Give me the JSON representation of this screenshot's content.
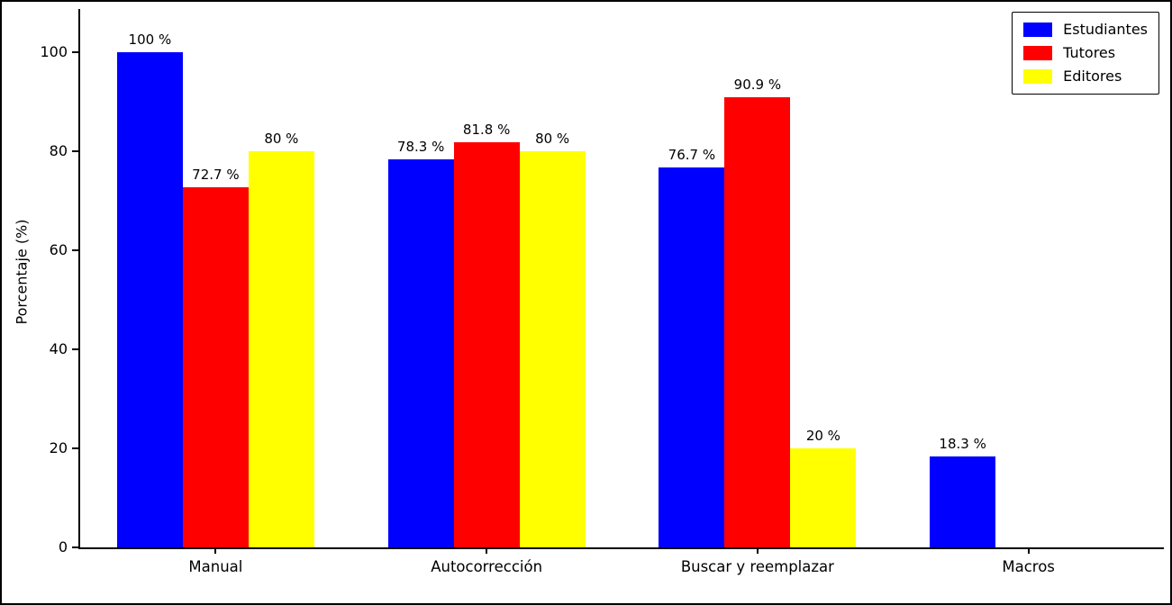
{
  "chart_data": {
    "type": "bar",
    "categories": [
      "Manual",
      "Autocorrección",
      "Buscar y reemplazar",
      "Macros"
    ],
    "series": [
      {
        "name": "Estudiantes",
        "color": "#0000ff",
        "values": [
          100,
          78.3,
          76.7,
          18.3
        ],
        "labels": [
          "100 %",
          "78.3 %",
          "76.7 %",
          "18.3 %"
        ]
      },
      {
        "name": "Tutores",
        "color": "#ff0000",
        "values": [
          72.7,
          81.8,
          90.9,
          0
        ],
        "labels": [
          "72.7 %",
          "81.8 %",
          "90.9 %",
          ""
        ]
      },
      {
        "name": "Editores",
        "color": "#ffff00",
        "values": [
          80,
          80,
          20,
          0
        ],
        "labels": [
          "80 %",
          "80 %",
          "20 %",
          ""
        ]
      }
    ],
    "title": "",
    "xlabel": "",
    "ylabel": "Porcentaje (%)",
    "ylim": [
      0,
      109
    ],
    "yticks": [
      0,
      20,
      40,
      60,
      80,
      100
    ],
    "grid": false,
    "legend_position": "upper right"
  }
}
